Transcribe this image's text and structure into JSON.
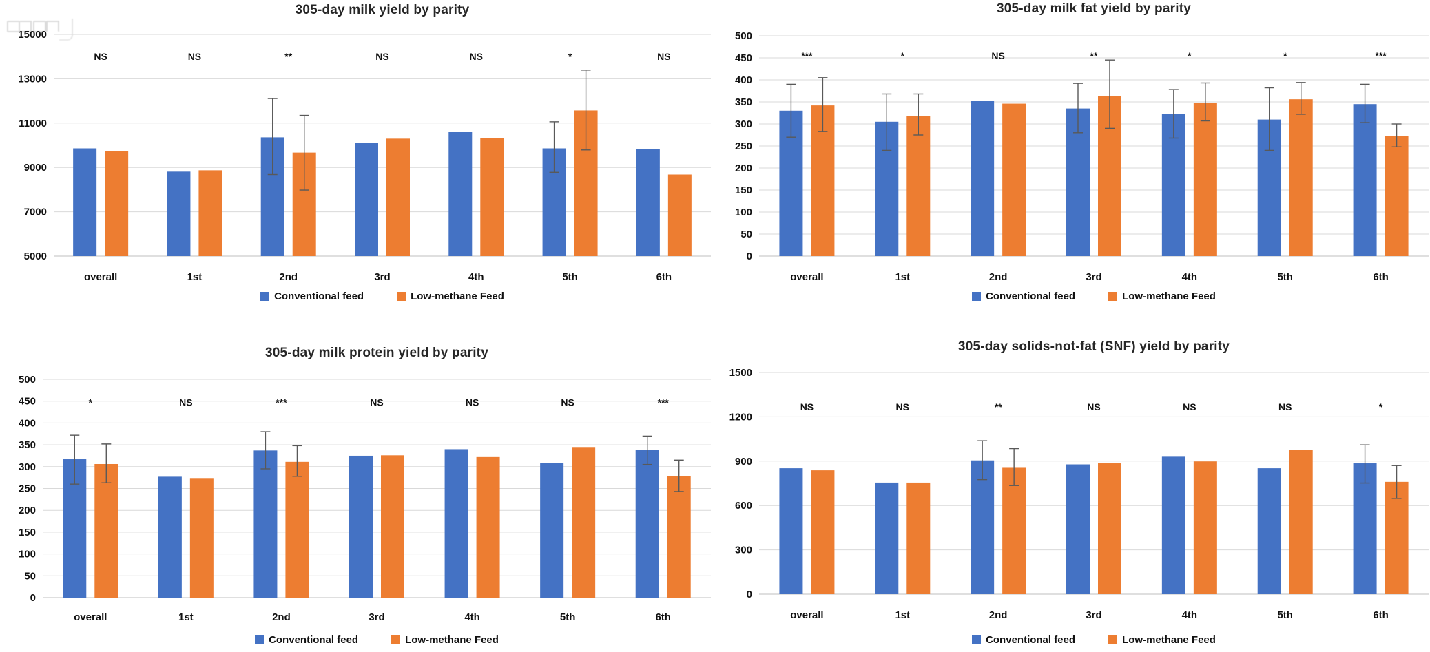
{
  "legend": {
    "items": [
      {
        "label": "Conventional feed",
        "color": "#4472C4"
      },
      {
        "label": "Low-methane Feed",
        "color": "#ED7D31"
      }
    ]
  },
  "chart_data": [
    {
      "type": "bar",
      "title": "305-day milk yield by parity",
      "categories": [
        "overall",
        "1st",
        "2nd",
        "3rd",
        "4th",
        "5th",
        "6th"
      ],
      "significance": [
        "NS",
        "NS",
        "**",
        "NS",
        "NS",
        "*",
        "NS"
      ],
      "ylim": [
        5000,
        15000
      ],
      "ystep": 2000,
      "grid": true,
      "legend_position": "bottom",
      "series": [
        {
          "name": "Conventional feed",
          "color": "#4472C4",
          "values": [
            9860,
            8810,
            10360,
            10110,
            10620,
            9860,
            9830
          ],
          "err_low": [
            null,
            null,
            8680,
            null,
            null,
            8780,
            null
          ],
          "err_high": [
            null,
            null,
            12110,
            null,
            null,
            11060,
            null
          ]
        },
        {
          "name": "Low-methane Feed",
          "color": "#ED7D31",
          "values": [
            9730,
            8870,
            9670,
            10300,
            10330,
            11570,
            8680
          ],
          "err_low": [
            null,
            null,
            7980,
            null,
            null,
            9790,
            null
          ],
          "err_high": [
            null,
            null,
            11350,
            null,
            null,
            13390,
            null
          ]
        }
      ]
    },
    {
      "type": "bar",
      "title": "305-day milk fat yield by parity",
      "categories": [
        "overall",
        "1st",
        "2nd",
        "3rd",
        "4th",
        "5th",
        "6th"
      ],
      "significance": [
        "***",
        "*",
        "NS",
        "**",
        "*",
        "*",
        "***"
      ],
      "ylim": [
        0,
        500
      ],
      "ystep": 50,
      "grid": true,
      "legend_position": "bottom",
      "series": [
        {
          "name": "Conventional feed",
          "color": "#4472C4",
          "values": [
            330,
            305,
            352,
            335,
            322,
            310,
            345
          ],
          "err_low": [
            270,
            240,
            null,
            280,
            268,
            240,
            303
          ],
          "err_high": [
            390,
            368,
            null,
            392,
            378,
            382,
            390
          ]
        },
        {
          "name": "Low-methane Feed",
          "color": "#ED7D31",
          "values": [
            342,
            318,
            346,
            363,
            348,
            356,
            272
          ],
          "err_low": [
            283,
            275,
            null,
            290,
            307,
            322,
            248
          ],
          "err_high": [
            405,
            368,
            null,
            445,
            393,
            394,
            300
          ]
        }
      ]
    },
    {
      "type": "bar",
      "title": "305-day milk protein yield by parity",
      "categories": [
        "overall",
        "1st",
        "2nd",
        "3rd",
        "4th",
        "5th",
        "6th"
      ],
      "significance": [
        "*",
        "NS",
        "***",
        "NS",
        "NS",
        "NS",
        "***"
      ],
      "ylim": [
        0,
        500
      ],
      "ystep": 50,
      "grid": true,
      "legend_position": "bottom",
      "series": [
        {
          "name": "Conventional feed",
          "color": "#4472C4",
          "values": [
            317,
            277,
            337,
            325,
            340,
            308,
            339
          ],
          "err_low": [
            260,
            null,
            295,
            null,
            null,
            null,
            305
          ],
          "err_high": [
            372,
            null,
            380,
            null,
            null,
            null,
            370
          ]
        },
        {
          "name": "Low-methane Feed",
          "color": "#ED7D31",
          "values": [
            306,
            274,
            311,
            326,
            322,
            345,
            279
          ],
          "err_low": [
            263,
            null,
            278,
            null,
            null,
            null,
            243
          ],
          "err_high": [
            352,
            null,
            348,
            null,
            null,
            null,
            315
          ]
        }
      ]
    },
    {
      "type": "bar",
      "title": "305-day solids-not-fat (SNF) yield by parity",
      "categories": [
        "overall",
        "1st",
        "2nd",
        "3rd",
        "4th",
        "5th",
        "6th"
      ],
      "significance": [
        "NS",
        "NS",
        "**",
        "NS",
        "NS",
        "NS",
        "*"
      ],
      "ylim": [
        0,
        1500
      ],
      "ystep": 300,
      "grid": true,
      "legend_position": "bottom",
      "series": [
        {
          "name": "Conventional feed",
          "color": "#4472C4",
          "values": [
            852,
            755,
            905,
            878,
            930,
            852,
            885
          ],
          "err_low": [
            null,
            null,
            775,
            null,
            null,
            null,
            752
          ],
          "err_high": [
            null,
            null,
            1038,
            null,
            null,
            null,
            1010
          ]
        },
        {
          "name": "Low-methane Feed",
          "color": "#ED7D31",
          "values": [
            838,
            755,
            855,
            885,
            898,
            975,
            760
          ],
          "err_low": [
            null,
            null,
            735,
            null,
            null,
            null,
            648
          ],
          "err_high": [
            null,
            null,
            985,
            null,
            null,
            null,
            870
          ]
        }
      ]
    }
  ]
}
